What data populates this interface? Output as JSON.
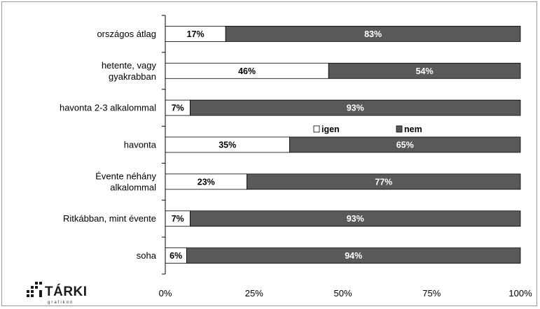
{
  "chart_data": {
    "type": "bar",
    "orientation": "horizontal",
    "stacked": true,
    "categories": [
      [
        "országos átlag"
      ],
      [
        "hetente, vagy",
        "gyakrabban"
      ],
      [
        "havonta 2-3 alkalommal"
      ],
      [
        "havonta"
      ],
      [
        "Évente néhány",
        "alkalommal"
      ],
      [
        "Ritkábban, mint évente"
      ],
      [
        "soha"
      ]
    ],
    "series": [
      {
        "name": "igen",
        "color": "#ffffff",
        "values": [
          17,
          46,
          7,
          35,
          23,
          7,
          6
        ],
        "labels": [
          "17%",
          "46%",
          "7%",
          "35%",
          "23%",
          "7%",
          "6%"
        ]
      },
      {
        "name": "nem",
        "color": "#595959",
        "values": [
          83,
          54,
          93,
          65,
          77,
          93,
          94
        ],
        "labels": [
          "83%",
          "54%",
          "93%",
          "65%",
          "77%",
          "93%",
          "94%"
        ]
      }
    ],
    "xlim": [
      0,
      100
    ],
    "x_ticks": [
      "0%",
      "25%",
      "50%",
      "75%",
      "100%"
    ],
    "x_tick_values": [
      0,
      25,
      50,
      75,
      100
    ],
    "legend_position": "middle-right",
    "grid": false
  },
  "logo": {
    "name": "TÁRKI",
    "sub": "grafikon"
  }
}
